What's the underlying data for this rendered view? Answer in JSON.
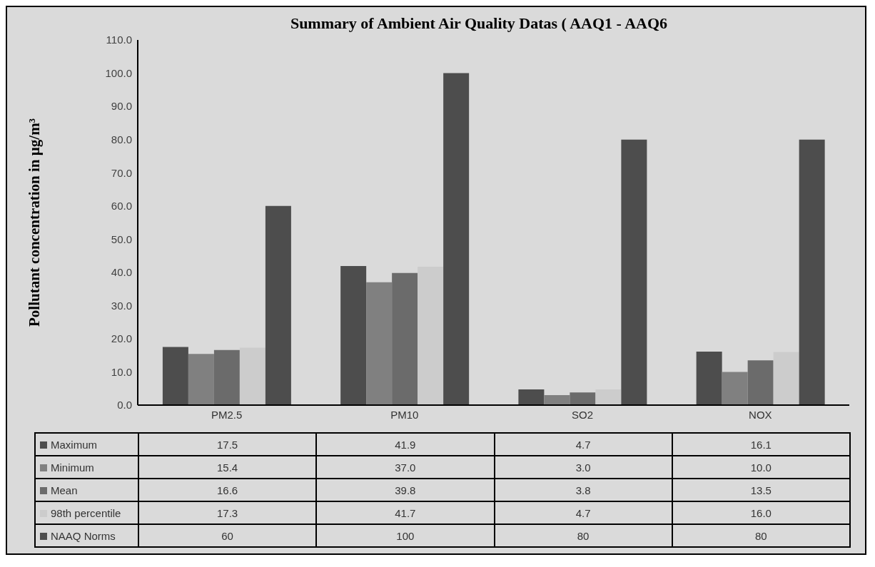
{
  "chart_data": {
    "type": "bar",
    "title": "Summary of Ambient Air Quality Datas ( AAQ1 - AAQ6",
    "ylabel": "Pollutant concentration in µg/m³",
    "categories": [
      "PM2.5",
      "PM10",
      "SO2",
      "NOX"
    ],
    "series": [
      {
        "name": "Maximum",
        "color": "#4d4d4d",
        "values": [
          17.5,
          41.9,
          4.7,
          16.1
        ],
        "value_labels": [
          "17.5",
          "41.9",
          "4.7",
          "16.1"
        ]
      },
      {
        "name": "Minimum",
        "color": "#808080",
        "values": [
          15.4,
          37.0,
          3.0,
          10.0
        ],
        "value_labels": [
          "15.4",
          "37.0",
          "3.0",
          "10.0"
        ]
      },
      {
        "name": "Mean",
        "color": "#6b6b6b",
        "values": [
          16.6,
          39.8,
          3.8,
          13.5
        ],
        "value_labels": [
          "16.6",
          "39.8",
          "3.8",
          "13.5"
        ]
      },
      {
        "name": "98th percentile",
        "color": "#cccccc",
        "values": [
          17.3,
          41.7,
          4.7,
          16.0
        ],
        "value_labels": [
          "17.3",
          "41.7",
          "4.7",
          "16.0"
        ]
      },
      {
        "name": "NAAQ Norms",
        "color": "#4d4d4d",
        "values": [
          60,
          100,
          80,
          80
        ],
        "value_labels": [
          "60",
          "100",
          "80",
          "80"
        ]
      }
    ],
    "ylim": [
      0,
      110
    ],
    "yticks": [
      {
        "value": 0,
        "label": "0.0"
      },
      {
        "value": 10,
        "label": "10.0"
      },
      {
        "value": 20,
        "label": "20.0"
      },
      {
        "value": 30,
        "label": "30.0"
      },
      {
        "value": 40,
        "label": "40.0"
      },
      {
        "value": 50,
        "label": "50.0"
      },
      {
        "value": 60,
        "label": "60.0"
      },
      {
        "value": 70,
        "label": "70.0"
      },
      {
        "value": 80,
        "label": "80.0"
      },
      {
        "value": 90,
        "label": "90.0"
      },
      {
        "value": 100,
        "label": "100.0"
      },
      {
        "value": 110,
        "label": "110.0"
      }
    ],
    "legend": "bottom"
  }
}
